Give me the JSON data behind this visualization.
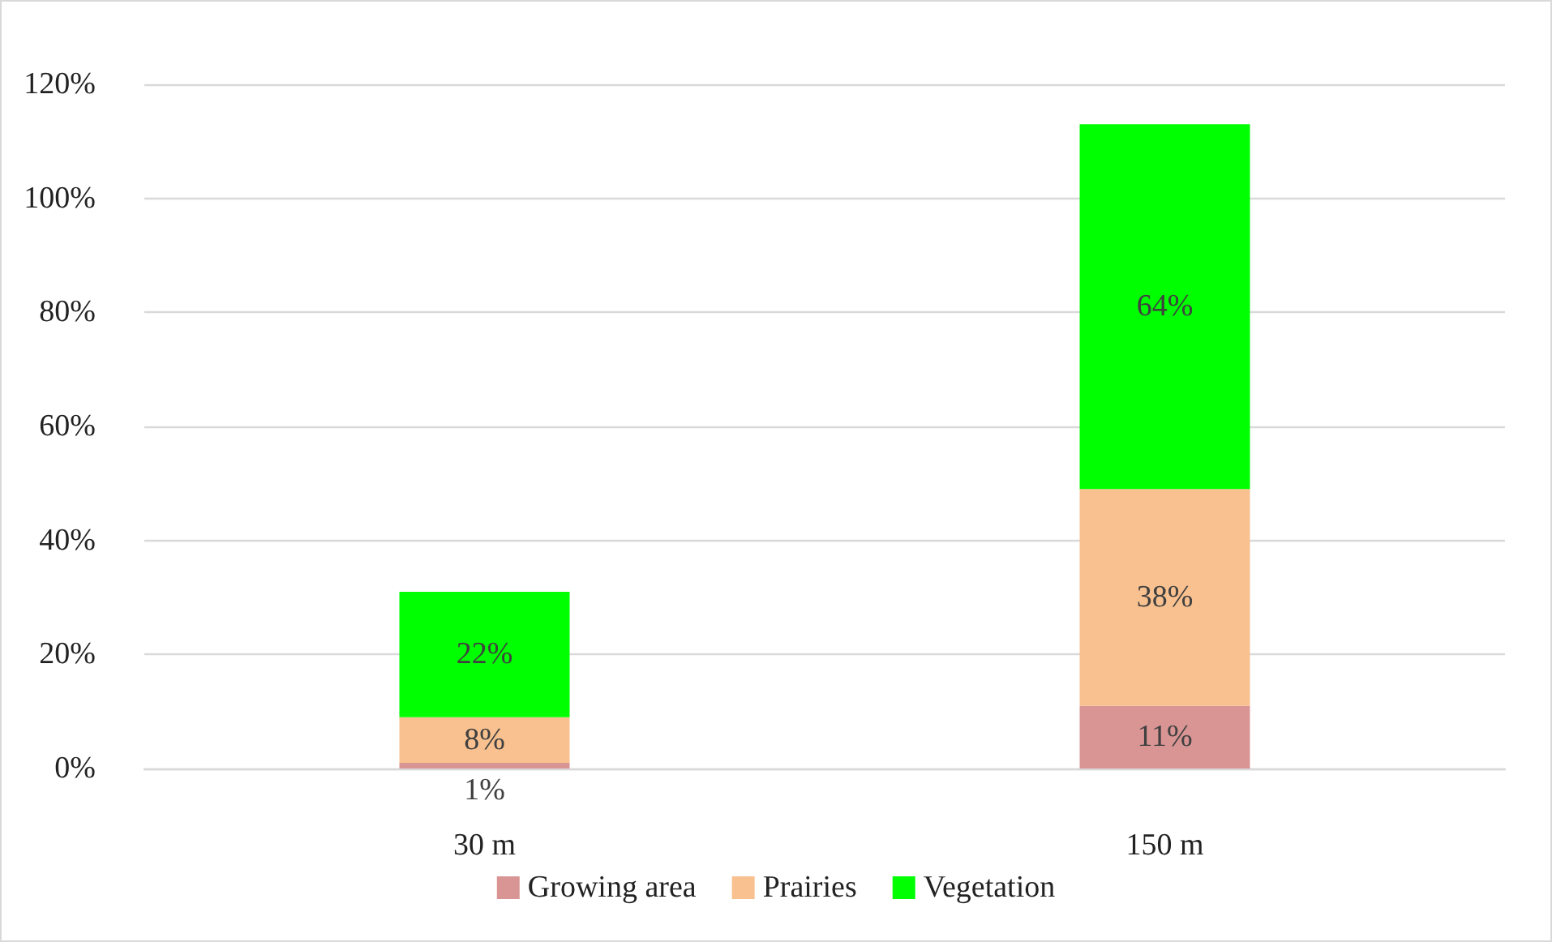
{
  "chart_data": {
    "type": "bar",
    "stacked": true,
    "categories": [
      "30 m",
      "150 m"
    ],
    "series": [
      {
        "name": "Growing area",
        "color": "#d99594",
        "values": [
          1,
          11
        ],
        "value_labels": [
          "1%",
          "11%"
        ]
      },
      {
        "name": "Prairies",
        "color": "#f9c18f",
        "values": [
          8,
          38
        ],
        "value_labels": [
          "8%",
          "38%"
        ]
      },
      {
        "name": "Vegetation",
        "color": "#00ff00",
        "values": [
          22,
          64
        ],
        "value_labels": [
          "22%",
          "64%"
        ]
      }
    ],
    "ylim": [
      0,
      120
    ],
    "yticks": [
      {
        "value": 0,
        "label": "0%"
      },
      {
        "value": 20,
        "label": "20%"
      },
      {
        "value": 40,
        "label": "40%"
      },
      {
        "value": 60,
        "label": "60%"
      },
      {
        "value": 80,
        "label": "80%"
      },
      {
        "value": 100,
        "label": "100%"
      },
      {
        "value": 120,
        "label": "120%"
      }
    ],
    "grid": "y",
    "legend": "bottom"
  }
}
